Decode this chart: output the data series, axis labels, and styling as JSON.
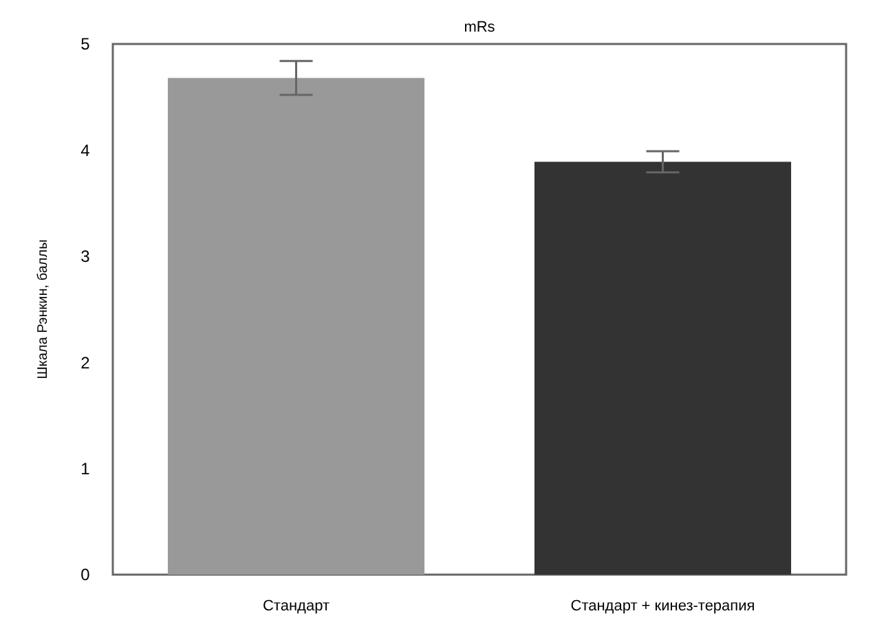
{
  "chart_data": {
    "type": "bar",
    "ylabel": "Шкала Рэнкин, баллы",
    "annotations": [
      "mRs"
    ],
    "categories": [
      "Стандарт",
      "Стандарт + кинез-терапия"
    ],
    "values": [
      4.68,
      3.89
    ],
    "colors": [
      "#999999",
      "#333333"
    ],
    "errors": [
      0.16,
      0.1
    ],
    "ylim": [
      0,
      5
    ],
    "yticks": [
      0,
      1,
      2,
      3,
      4,
      5
    ],
    "grid": false
  }
}
